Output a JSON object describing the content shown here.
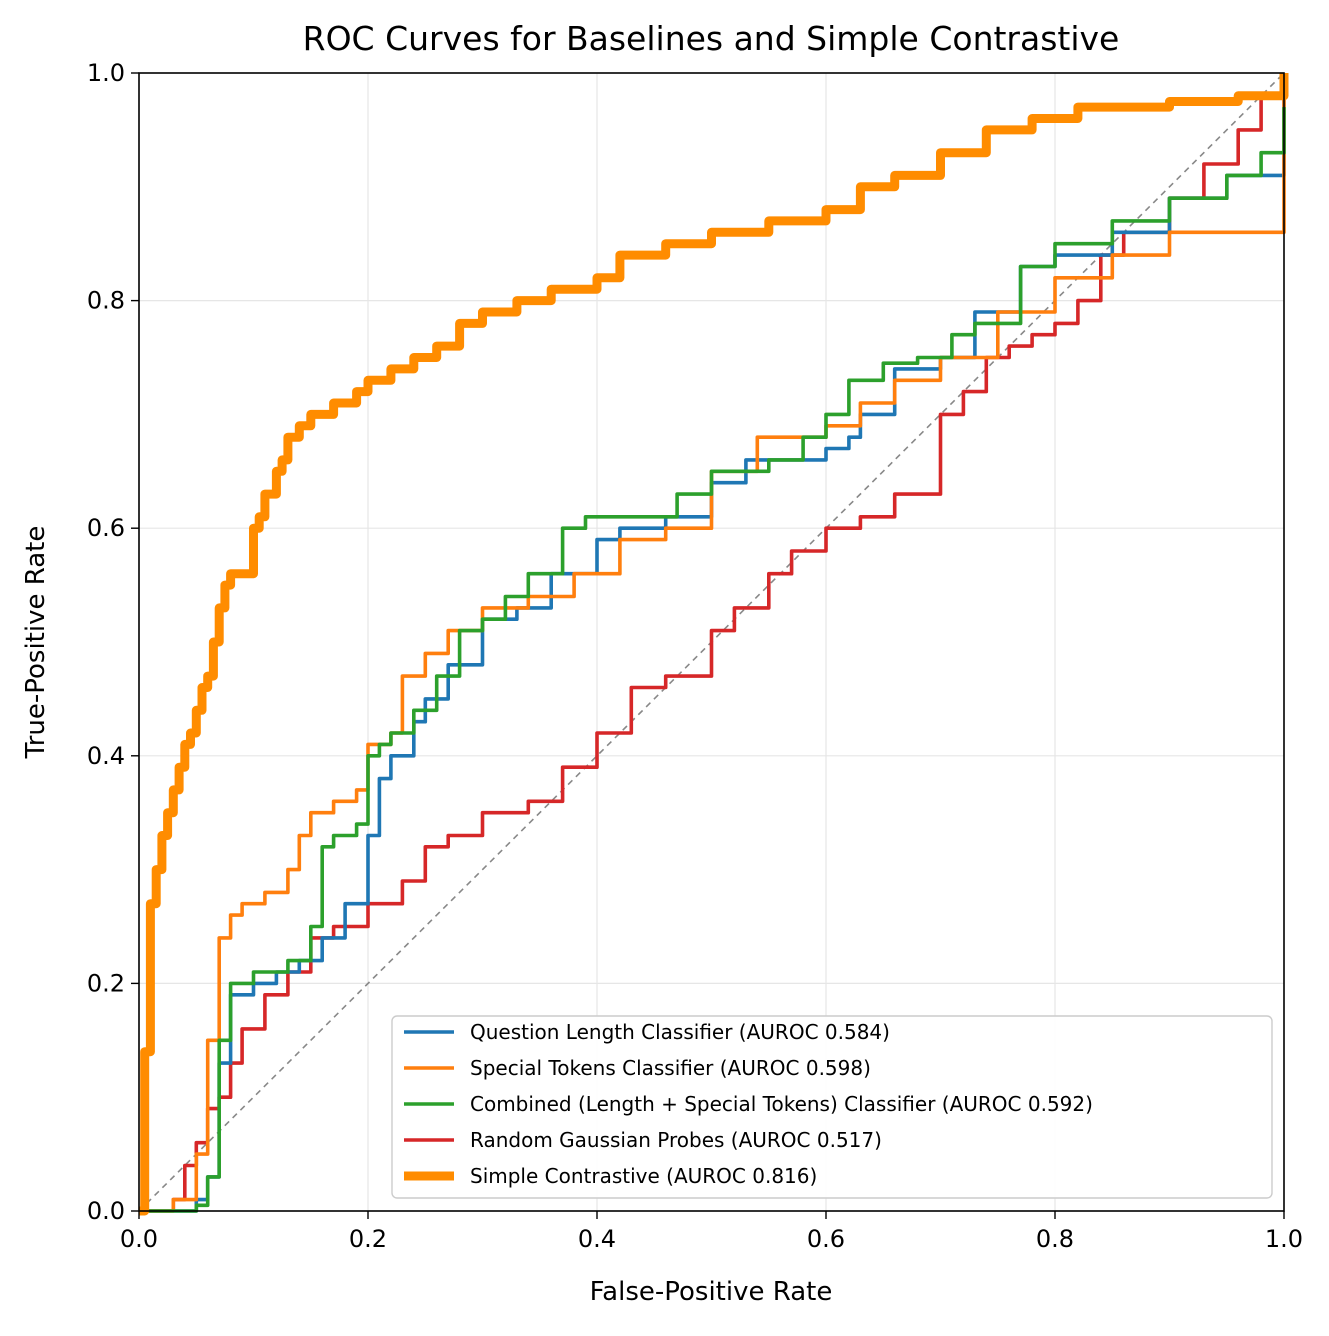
{
  "chart_data": {
    "type": "line",
    "title": "ROC Curves for Baselines and Simple Contrastive",
    "xlabel": "False-Positive Rate",
    "ylabel": "True-Positive Rate",
    "xlim": [
      0,
      1
    ],
    "ylim": [
      0,
      1
    ],
    "grid": true,
    "legend_position": "lower-right",
    "xticks": [
      "0.0",
      "0.2",
      "0.4",
      "0.6",
      "0.8",
      "1.0"
    ],
    "yticks": [
      "0.0",
      "0.2",
      "0.4",
      "0.6",
      "0.8",
      "1.0"
    ],
    "diagonal": {
      "name": "chance",
      "color": "#888888",
      "x": [
        0,
        1
      ],
      "y": [
        0,
        1
      ]
    },
    "series": [
      {
        "name": "Question Length Classifier",
        "legend_label": "Question Length Classifier  (AUROC 0.584)",
        "auroc": 0.584,
        "color": "#1f77b4",
        "weight": "normal",
        "x": [
          0,
          0.05,
          0.06,
          0.07,
          0.08,
          0.1,
          0.12,
          0.14,
          0.16,
          0.18,
          0.2,
          0.21,
          0.22,
          0.24,
          0.25,
          0.27,
          0.3,
          0.33,
          0.36,
          0.4,
          0.42,
          0.46,
          0.5,
          0.53,
          0.6,
          0.62,
          0.63,
          0.66,
          0.7,
          0.73,
          0.77,
          0.8,
          0.85,
          0.9,
          0.95,
          1.0
        ],
        "y": [
          0,
          0.01,
          0.03,
          0.13,
          0.19,
          0.2,
          0.21,
          0.22,
          0.24,
          0.27,
          0.33,
          0.38,
          0.4,
          0.43,
          0.45,
          0.48,
          0.52,
          0.53,
          0.56,
          0.59,
          0.6,
          0.61,
          0.64,
          0.66,
          0.67,
          0.68,
          0.7,
          0.74,
          0.75,
          0.79,
          0.83,
          0.84,
          0.86,
          0.89,
          0.91,
          1.0
        ]
      },
      {
        "name": "Special Tokens Classifier",
        "legend_label": "Special Tokens Classifier  (AUROC 0.598)",
        "auroc": 0.598,
        "color": "#ff7f0e",
        "weight": "normal",
        "x": [
          0,
          0.03,
          0.05,
          0.06,
          0.07,
          0.08,
          0.09,
          0.11,
          0.13,
          0.14,
          0.15,
          0.17,
          0.19,
          0.2,
          0.22,
          0.23,
          0.25,
          0.27,
          0.3,
          0.34,
          0.38,
          0.42,
          0.46,
          0.5,
          0.54,
          0.6,
          0.63,
          0.66,
          0.7,
          0.75,
          0.8,
          0.85,
          0.9,
          1.0,
          1.0
        ],
        "y": [
          0,
          0.01,
          0.05,
          0.15,
          0.24,
          0.26,
          0.27,
          0.28,
          0.3,
          0.33,
          0.35,
          0.36,
          0.37,
          0.41,
          0.42,
          0.47,
          0.49,
          0.51,
          0.53,
          0.54,
          0.56,
          0.59,
          0.6,
          0.65,
          0.68,
          0.69,
          0.71,
          0.73,
          0.75,
          0.79,
          0.82,
          0.84,
          0.86,
          0.89,
          1.0
        ]
      },
      {
        "name": "Combined (Length + Special Tokens) Classifier",
        "legend_label": "Combined (Length + Special Tokens) Classifier  (AUROC 0.592)",
        "auroc": 0.592,
        "color": "#2ca02c",
        "weight": "normal",
        "x": [
          0,
          0.05,
          0.06,
          0.07,
          0.08,
          0.1,
          0.13,
          0.15,
          0.16,
          0.17,
          0.19,
          0.2,
          0.21,
          0.22,
          0.24,
          0.26,
          0.28,
          0.3,
          0.32,
          0.34,
          0.37,
          0.39,
          0.42,
          0.47,
          0.5,
          0.55,
          0.58,
          0.6,
          0.62,
          0.65,
          0.68,
          0.71,
          0.73,
          0.77,
          0.8,
          0.85,
          0.9,
          0.95,
          0.98,
          1.0
        ],
        "y": [
          0,
          0.005,
          0.03,
          0.15,
          0.2,
          0.21,
          0.22,
          0.25,
          0.32,
          0.33,
          0.34,
          0.4,
          0.41,
          0.42,
          0.44,
          0.47,
          0.51,
          0.52,
          0.54,
          0.56,
          0.6,
          0.61,
          0.61,
          0.63,
          0.65,
          0.66,
          0.68,
          0.7,
          0.73,
          0.745,
          0.75,
          0.77,
          0.78,
          0.83,
          0.85,
          0.87,
          0.89,
          0.91,
          0.93,
          0.97
        ]
      },
      {
        "name": "Random Gaussian Probes",
        "legend_label": "Random Gaussian Probes  (AUROC 0.517)",
        "auroc": 0.517,
        "color": "#d62728",
        "weight": "normal",
        "x": [
          0,
          0.03,
          0.04,
          0.05,
          0.06,
          0.07,
          0.08,
          0.09,
          0.11,
          0.13,
          0.15,
          0.17,
          0.2,
          0.23,
          0.25,
          0.27,
          0.3,
          0.34,
          0.37,
          0.4,
          0.43,
          0.46,
          0.5,
          0.52,
          0.55,
          0.57,
          0.6,
          0.63,
          0.66,
          0.7,
          0.72,
          0.74,
          0.76,
          0.78,
          0.8,
          0.82,
          0.84,
          0.86,
          0.9,
          0.93,
          0.96,
          0.98,
          1.0
        ],
        "y": [
          0,
          0.01,
          0.04,
          0.06,
          0.09,
          0.1,
          0.13,
          0.16,
          0.19,
          0.21,
          0.24,
          0.25,
          0.27,
          0.29,
          0.32,
          0.33,
          0.35,
          0.36,
          0.39,
          0.42,
          0.46,
          0.47,
          0.51,
          0.53,
          0.56,
          0.58,
          0.6,
          0.61,
          0.63,
          0.7,
          0.72,
          0.75,
          0.76,
          0.77,
          0.78,
          0.8,
          0.84,
          0.86,
          0.89,
          0.92,
          0.95,
          0.98,
          1.0
        ]
      },
      {
        "name": "Simple Contrastive",
        "legend_label": "Simple Contrastive (AUROC 0.816)",
        "auroc": 0.816,
        "color": "#ff8c00",
        "weight": "thick",
        "x": [
          0,
          0.005,
          0.01,
          0.015,
          0.02,
          0.025,
          0.03,
          0.035,
          0.04,
          0.045,
          0.05,
          0.055,
          0.06,
          0.065,
          0.07,
          0.075,
          0.08,
          0.09,
          0.1,
          0.105,
          0.11,
          0.12,
          0.125,
          0.13,
          0.14,
          0.15,
          0.17,
          0.19,
          0.2,
          0.22,
          0.24,
          0.26,
          0.28,
          0.3,
          0.33,
          0.36,
          0.39,
          0.4,
          0.42,
          0.46,
          0.5,
          0.55,
          0.6,
          0.63,
          0.66,
          0.7,
          0.74,
          0.78,
          0.82,
          0.86,
          0.9,
          0.96,
          1.0
        ],
        "y": [
          0,
          0.14,
          0.27,
          0.3,
          0.33,
          0.35,
          0.37,
          0.39,
          0.41,
          0.42,
          0.44,
          0.46,
          0.47,
          0.5,
          0.53,
          0.55,
          0.56,
          0.56,
          0.6,
          0.61,
          0.63,
          0.65,
          0.66,
          0.68,
          0.69,
          0.7,
          0.71,
          0.72,
          0.73,
          0.74,
          0.75,
          0.76,
          0.78,
          0.79,
          0.8,
          0.81,
          0.81,
          0.82,
          0.84,
          0.85,
          0.86,
          0.87,
          0.88,
          0.9,
          0.91,
          0.93,
          0.95,
          0.96,
          0.97,
          0.97,
          0.975,
          0.98,
          1.0
        ]
      }
    ]
  }
}
